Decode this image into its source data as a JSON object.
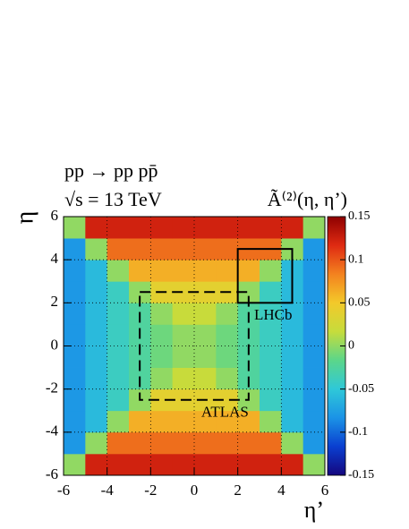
{
  "chart_data": {
    "type": "heatmap",
    "title": "pp → pp pp̄",
    "subtitle": "√s = 13 TeV",
    "z_label": "Ã⁽²⁾(η, η’)",
    "x_label": "η’",
    "y_label": "η",
    "xbins": [
      -6,
      -5,
      -4,
      -3,
      -2,
      -1,
      0,
      1,
      2,
      3,
      4,
      5,
      6
    ],
    "ybins": [
      -6,
      -5,
      -4,
      -3,
      -2,
      -1,
      0,
      1,
      2,
      3,
      4,
      5,
      6
    ],
    "values": [
      [
        0,
        0.123,
        0.123,
        0.123,
        0.123,
        0.123,
        0.123,
        0.123,
        0.123,
        0.123,
        0.123,
        0
      ],
      [
        -0.08,
        0,
        0.091,
        0.091,
        0.091,
        0.091,
        0.091,
        0.091,
        0.091,
        0.091,
        0,
        -0.08
      ],
      [
        -0.08,
        -0.059,
        0,
        0.062,
        0.062,
        0.062,
        0.062,
        0.062,
        0.062,
        0,
        -0.059,
        -0.08
      ],
      [
        -0.08,
        -0.059,
        -0.04,
        0,
        0.038,
        0.038,
        0.038,
        0.038,
        0,
        -0.04,
        -0.059,
        -0.08
      ],
      [
        -0.08,
        -0.059,
        -0.04,
        -0.025,
        0,
        0.018,
        0.018,
        0,
        -0.025,
        -0.04,
        -0.059,
        -0.08
      ],
      [
        -0.08,
        -0.059,
        -0.04,
        -0.025,
        -0.011,
        0,
        0,
        -0.011,
        -0.025,
        -0.04,
        -0.059,
        -0.08
      ],
      [
        -0.08,
        -0.059,
        -0.04,
        -0.025,
        -0.011,
        0,
        0,
        -0.011,
        -0.025,
        -0.04,
        -0.059,
        -0.08
      ],
      [
        -0.08,
        -0.059,
        -0.04,
        -0.025,
        0,
        0.018,
        0.018,
        0,
        -0.025,
        -0.04,
        -0.059,
        -0.08
      ],
      [
        -0.08,
        -0.059,
        -0.04,
        0,
        0.038,
        0.038,
        0.038,
        0.038,
        0,
        -0.04,
        -0.059,
        -0.08
      ],
      [
        -0.08,
        -0.059,
        0,
        0.062,
        0.062,
        0.062,
        0.062,
        0.062,
        0.062,
        0,
        -0.059,
        -0.08
      ],
      [
        -0.08,
        0,
        0.091,
        0.091,
        0.091,
        0.091,
        0.091,
        0.091,
        0.091,
        0.091,
        0,
        -0.08
      ],
      [
        0,
        0.123,
        0.123,
        0.123,
        0.123,
        0.123,
        0.123,
        0.123,
        0.123,
        0.123,
        0.123,
        0
      ]
    ],
    "xlim": [
      -6,
      6
    ],
    "ylim": [
      -6,
      6
    ],
    "xticks": [
      -6,
      -4,
      -2,
      0,
      2,
      4,
      6
    ],
    "yticks": [
      -6,
      -4,
      -2,
      0,
      2,
      4,
      6
    ],
    "zlim": [
      -0.15,
      0.15
    ],
    "zticks": [
      -0.15,
      -0.1,
      -0.05,
      0,
      0.05,
      0.1,
      0.15
    ],
    "colormap": [
      "#14067e",
      "#0a3fd0",
      "#1b93e6",
      "#2fc8d8",
      "#5bd68a",
      "#c6dc3c",
      "#f3c92a",
      "#f3821f",
      "#df2a12",
      "#8e0000"
    ],
    "grid": true,
    "regions": [
      {
        "label": "LHCb",
        "xlim": [
          2,
          4.5
        ],
        "ylim": [
          2,
          4.5
        ],
        "dashed": false
      },
      {
        "label": "ATLAS",
        "xlim": [
          -2.5,
          2.5
        ],
        "ylim": [
          -2.5,
          2.5
        ],
        "dashed": true
      }
    ]
  }
}
